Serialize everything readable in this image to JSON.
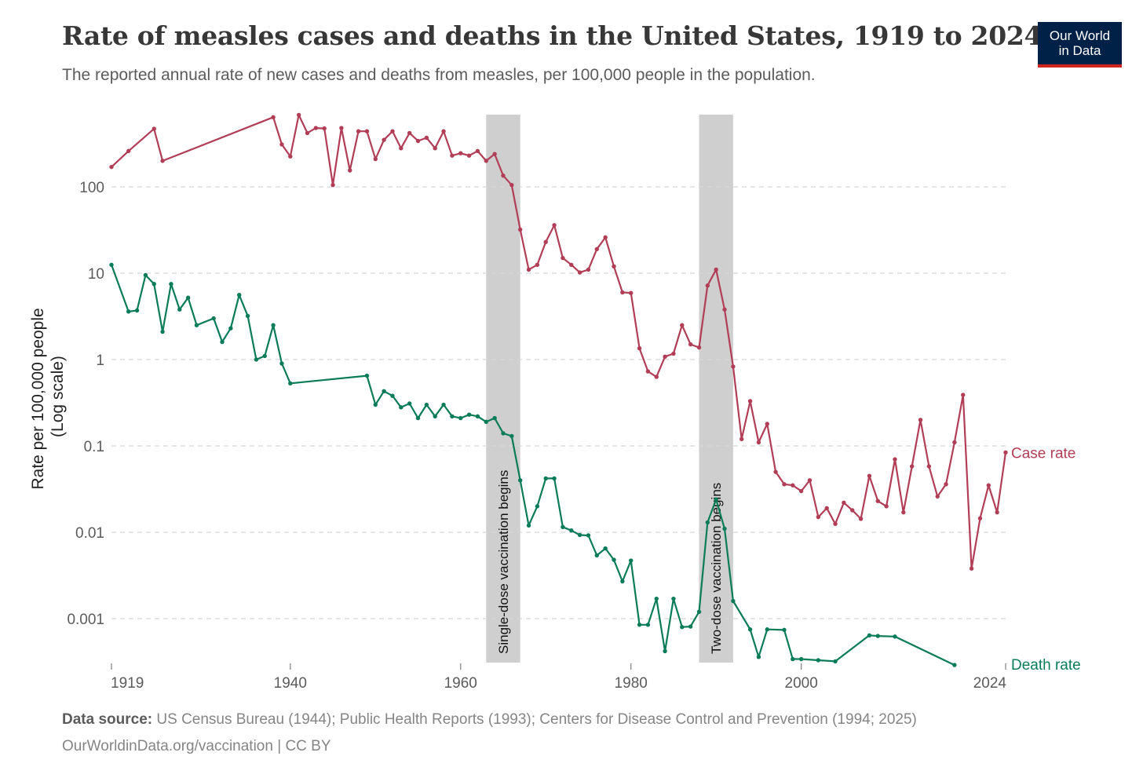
{
  "header": {
    "title": "Rate of measles cases and deaths in the United States, 1919 to 2024",
    "subtitle": "The reported annual rate of new cases and deaths from measles, per 100,000 people in the population.",
    "logo_line1": "Our World",
    "logo_line2": "in Data"
  },
  "footer": {
    "source_label": "Data source:",
    "source_text": "US Census Bureau (1944); Public Health Reports (1993); Centers for Disease Control and Prevention (1994; 2025)",
    "link": "OurWorldinData.org/vaccination",
    "license": " | CC BY"
  },
  "colors": {
    "case": "#b13e56",
    "death": "#0a7c58",
    "band": "#cfcfcf",
    "grid": "#d8d8d8",
    "text": "#5b5b5b"
  },
  "chart_data": {
    "type": "line",
    "log_scale": true,
    "ylabel_line1": "Rate per 100,000 people",
    "ylabel_line2": "(Log scale)",
    "ylim": [
      0.0003,
      700
    ],
    "xlim": [
      1919,
      2024
    ],
    "x_ticks": [
      1919,
      1940,
      1960,
      1980,
      2000,
      2024
    ],
    "y_ticks": [
      {
        "value": 100,
        "label": "100"
      },
      {
        "value": 10,
        "label": "10"
      },
      {
        "value": 1,
        "label": "1"
      },
      {
        "value": 0.1,
        "label": "0.1"
      },
      {
        "value": 0.01,
        "label": "0.01"
      },
      {
        "value": 0.001,
        "label": "0.001"
      }
    ],
    "grid": true,
    "annotations": [
      {
        "label": "Single-dose vaccination begins",
        "x_start": 1963,
        "x_end": 1967
      },
      {
        "label": "Two-dose vaccination begins",
        "x_start": 1988,
        "x_end": 1992
      }
    ],
    "series": [
      {
        "name": "Case rate",
        "color": "#b13e56",
        "points": [
          [
            1919,
            170
          ],
          [
            1921,
            260
          ],
          [
            1924,
            470
          ],
          [
            1925,
            200
          ],
          [
            1938,
            640
          ],
          [
            1939,
            310
          ],
          [
            1940,
            225
          ],
          [
            1941,
            680
          ],
          [
            1942,
            420
          ],
          [
            1943,
            480
          ],
          [
            1944,
            475
          ],
          [
            1945,
            105
          ],
          [
            1946,
            480
          ],
          [
            1947,
            155
          ],
          [
            1948,
            440
          ],
          [
            1949,
            440
          ],
          [
            1950,
            210
          ],
          [
            1951,
            350
          ],
          [
            1952,
            440
          ],
          [
            1953,
            280
          ],
          [
            1954,
            420
          ],
          [
            1955,
            340
          ],
          [
            1956,
            370
          ],
          [
            1957,
            280
          ],
          [
            1958,
            440
          ],
          [
            1959,
            230
          ],
          [
            1960,
            245
          ],
          [
            1961,
            230
          ],
          [
            1962,
            260
          ],
          [
            1963,
            200
          ],
          [
            1964,
            240
          ],
          [
            1965,
            135
          ],
          [
            1966,
            105
          ],
          [
            1967,
            32
          ],
          [
            1968,
            11
          ],
          [
            1969,
            12.5
          ],
          [
            1970,
            23
          ],
          [
            1971,
            36
          ],
          [
            1972,
            15
          ],
          [
            1973,
            12.5
          ],
          [
            1974,
            10.2
          ],
          [
            1975,
            11
          ],
          [
            1976,
            19
          ],
          [
            1977,
            26
          ],
          [
            1978,
            12
          ],
          [
            1979,
            6
          ],
          [
            1980,
            5.9
          ],
          [
            1981,
            1.35
          ],
          [
            1982,
            0.73
          ],
          [
            1983,
            0.63
          ],
          [
            1984,
            1.08
          ],
          [
            1985,
            1.17
          ],
          [
            1986,
            2.5
          ],
          [
            1987,
            1.5
          ],
          [
            1988,
            1.38
          ],
          [
            1989,
            7.2
          ],
          [
            1990,
            11
          ],
          [
            1991,
            3.8
          ],
          [
            1992,
            0.83
          ],
          [
            1993,
            0.12
          ],
          [
            1994,
            0.33
          ],
          [
            1995,
            0.11
          ],
          [
            1996,
            0.18
          ],
          [
            1997,
            0.05
          ],
          [
            1998,
            0.036
          ],
          [
            1999,
            0.035
          ],
          [
            2000,
            0.03
          ],
          [
            2001,
            0.04
          ],
          [
            2002,
            0.015
          ],
          [
            2003,
            0.019
          ],
          [
            2004,
            0.0125
          ],
          [
            2005,
            0.022
          ],
          [
            2006,
            0.018
          ],
          [
            2007,
            0.0143
          ],
          [
            2008,
            0.045
          ],
          [
            2009,
            0.023
          ],
          [
            2010,
            0.02
          ],
          [
            2011,
            0.07
          ],
          [
            2012,
            0.017
          ],
          [
            2013,
            0.058
          ],
          [
            2014,
            0.2
          ],
          [
            2015,
            0.058
          ],
          [
            2016,
            0.026
          ],
          [
            2017,
            0.036
          ],
          [
            2018,
            0.11
          ],
          [
            2019,
            0.39
          ],
          [
            2020,
            0.0038
          ],
          [
            2021,
            0.0145
          ],
          [
            2022,
            0.035
          ],
          [
            2023,
            0.017
          ],
          [
            2024,
            0.084
          ]
        ]
      },
      {
        "name": "Death rate",
        "color": "#0a7c58",
        "points": [
          [
            1919,
            12.5
          ],
          [
            1921,
            3.6
          ],
          [
            1922,
            3.7
          ],
          [
            1923,
            9.5
          ],
          [
            1924,
            7.5
          ],
          [
            1925,
            2.1
          ],
          [
            1926,
            7.5
          ],
          [
            1927,
            3.8
          ],
          [
            1928,
            5.2
          ],
          [
            1929,
            2.5
          ],
          [
            1931,
            3
          ],
          [
            1932,
            1.6
          ],
          [
            1933,
            2.3
          ],
          [
            1934,
            5.6
          ],
          [
            1935,
            3.2
          ],
          [
            1936,
            1
          ],
          [
            1937,
            1.1
          ],
          [
            1938,
            2.5
          ],
          [
            1939,
            0.9
          ],
          [
            1940,
            0.53
          ],
          [
            1949,
            0.65
          ],
          [
            1950,
            0.3
          ],
          [
            1951,
            0.43
          ],
          [
            1952,
            0.38
          ],
          [
            1953,
            0.28
          ],
          [
            1954,
            0.31
          ],
          [
            1955,
            0.21
          ],
          [
            1956,
            0.3
          ],
          [
            1957,
            0.22
          ],
          [
            1958,
            0.3
          ],
          [
            1959,
            0.22
          ],
          [
            1960,
            0.21
          ],
          [
            1961,
            0.23
          ],
          [
            1962,
            0.22
          ],
          [
            1963,
            0.19
          ],
          [
            1964,
            0.21
          ],
          [
            1965,
            0.14
          ],
          [
            1966,
            0.13
          ],
          [
            1967,
            0.04
          ],
          [
            1968,
            0.012
          ],
          [
            1969,
            0.02
          ],
          [
            1970,
            0.042
          ],
          [
            1971,
            0.042
          ],
          [
            1972,
            0.0115
          ],
          [
            1973,
            0.0105
          ],
          [
            1974,
            0.0093
          ],
          [
            1975,
            0.0092
          ],
          [
            1976,
            0.0054
          ],
          [
            1977,
            0.0065
          ],
          [
            1978,
            0.0048
          ],
          [
            1979,
            0.0027
          ],
          [
            1980,
            0.0047
          ],
          [
            1981,
            0.00085
          ],
          [
            1982,
            0.00085
          ],
          [
            1983,
            0.0017
          ],
          [
            1984,
            0.00042
          ],
          [
            1985,
            0.0017
          ],
          [
            1986,
            0.0008
          ],
          [
            1987,
            0.00081
          ],
          [
            1988,
            0.0012
          ],
          [
            1989,
            0.013
          ],
          [
            1990,
            0.024
          ],
          [
            1991,
            0.011
          ],
          [
            1992,
            0.0016
          ],
          [
            1994,
            0.00075
          ],
          [
            1995,
            0.00036
          ],
          [
            1996,
            0.00075
          ],
          [
            1998,
            0.00074
          ],
          [
            1999,
            0.00034
          ],
          [
            2000,
            0.00034
          ],
          [
            2002,
            0.00033
          ],
          [
            2004,
            0.00032
          ],
          [
            2008,
            0.00064
          ],
          [
            2009,
            0.00063
          ],
          [
            2011,
            0.00062
          ],
          [
            2018,
            0.00029
          ]
        ]
      }
    ]
  }
}
